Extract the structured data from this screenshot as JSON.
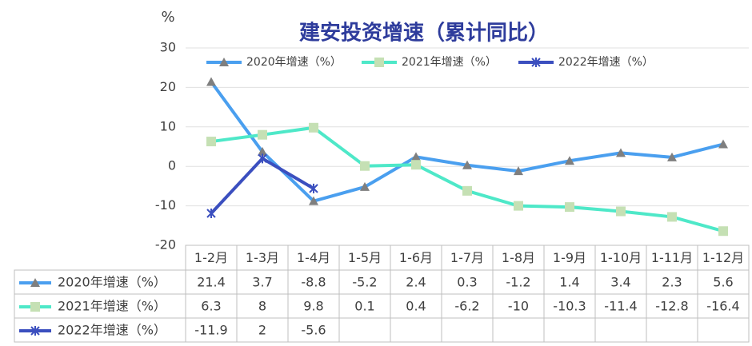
{
  "chart_data": {
    "type": "line",
    "title": "建安投资增速（累计同比）",
    "y_label": "%",
    "categories": [
      "1-2月",
      "1-3月",
      "1-4月",
      "1-5月",
      "1-6月",
      "1-7月",
      "1-8月",
      "1-9月",
      "1-10月",
      "1-11月",
      "1-12月"
    ],
    "series": [
      {
        "name": "2020年增速（%）",
        "color": "#4a9fef",
        "marker_color": "#7f7f7f",
        "marker": "triangle",
        "values": [
          21.4,
          3.7,
          -8.8,
          -5.2,
          2.4,
          0.3,
          -1.2,
          1.4,
          3.4,
          2.3,
          5.6
        ]
      },
      {
        "name": "2021年增速（%）",
        "color": "#4ee8c8",
        "marker_color": "#c5e0b4",
        "marker": "square",
        "values": [
          6.3,
          8,
          9.8,
          0.1,
          0.4,
          -6.2,
          -10,
          -10.3,
          -11.4,
          -12.8,
          -16.4
        ]
      },
      {
        "name": "2022年增速（%）",
        "color": "#3b4fbf",
        "marker_color": "#3b4fbf",
        "marker": "star",
        "values": [
          -11.9,
          2,
          -5.6,
          null,
          null,
          null,
          null,
          null,
          null,
          null,
          null
        ]
      }
    ],
    "ylim": [
      -20,
      30
    ],
    "yticks": [
      30,
      20,
      10,
      0,
      -10,
      -20
    ],
    "grid": true,
    "legend": "top"
  }
}
